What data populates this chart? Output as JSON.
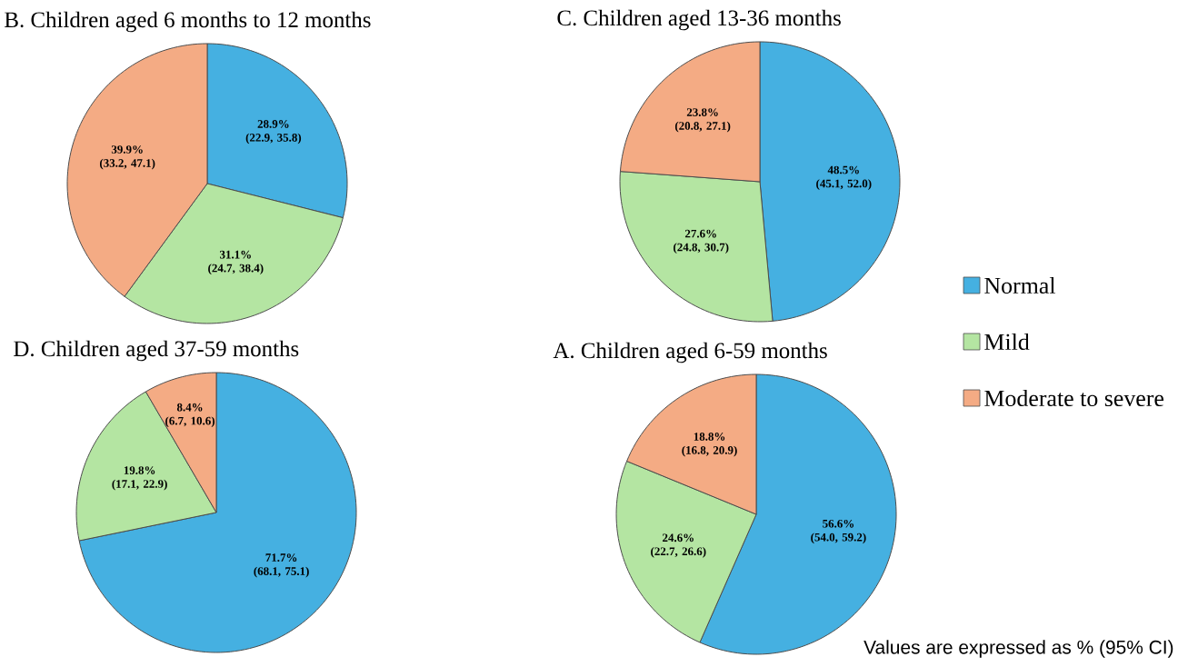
{
  "chart_data": [
    {
      "type": "pie",
      "title": "B. Children aged 6 months to 12 months",
      "categories": [
        null,
        null,
        null
      ],
      "values": [
        28.9,
        31.1,
        39.9
      ],
      "colors": [
        "#45b0e1",
        "#b4e5a2",
        "#f4ab84"
      ],
      "value_labels": [
        "28.9% (22.9, 35.8)",
        "31.1% (24.7, 38.4)",
        "39.9% (33.2, 47.1)"
      ]
    },
    {
      "type": "pie",
      "title": "C. Children aged 13-36 months",
      "categories": [
        "Normal",
        "Mild",
        "Moderate to severe"
      ],
      "values": [
        48.5,
        27.6,
        23.8
      ],
      "colors": [
        "#45b0e1",
        "#b4e5a2",
        "#f4ab84"
      ],
      "value_labels": [
        "48.5% (45.1, 52.0)",
        "27.6% (24.8, 30.7)",
        "23.8% (20.8, 27.1)"
      ],
      "legend": "right"
    },
    {
      "type": "pie",
      "title": "D. Children aged 37-59 months",
      "categories": [
        null,
        null,
        null
      ],
      "values": [
        71.7,
        19.8,
        8.4
      ],
      "colors": [
        "#45b0e1",
        "#b4e5a2",
        "#f4ab84"
      ],
      "value_labels": [
        "71.7% (68.1, 75.1)",
        "19.8% (17.1, 22.9)",
        "8.4% (6.7, 10.6)"
      ]
    },
    {
      "type": "pie",
      "title": "A. Children aged 6-59 months",
      "categories": [
        null,
        null,
        null
      ],
      "values": [
        56.6,
        24.6,
        18.8
      ],
      "colors": [
        "#45b0e1",
        "#b4e5a2",
        "#f4ab84"
      ],
      "value_labels": [
        "56.6% (54.0, 59.2)",
        "24.6% (22.7, 26.6)",
        "18.8% (16.8, 20.9)"
      ],
      "annotations": [
        "Values are expressed as % (95% CI)"
      ]
    }
  ]
}
